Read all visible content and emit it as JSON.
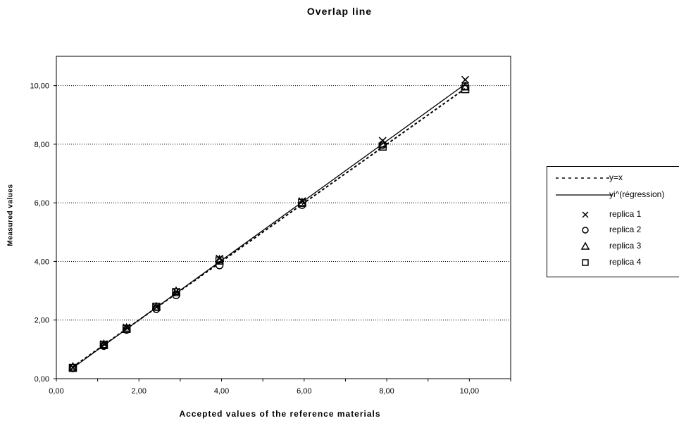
{
  "chart_data": {
    "type": "scatter",
    "title": "Overlap line",
    "xlabel": "Accepted values of the reference materials",
    "ylabel": "Measured values",
    "xlim": [
      0,
      11
    ],
    "ylim": [
      0,
      11
    ],
    "x_ticks": [
      "0,00",
      "2,00",
      "4,00",
      "6,00",
      "8,00",
      "10,00"
    ],
    "y_ticks": [
      "0,00",
      "2,00",
      "4,00",
      "6,00",
      "8,00",
      "10,00"
    ],
    "grid": "horizontal dotted",
    "legend_position": "right",
    "lines": [
      {
        "name": "y=x",
        "style": "dashed",
        "points": [
          [
            0.4,
            0.4
          ],
          [
            9.9,
            9.9
          ]
        ]
      },
      {
        "name": "yi^(régression)",
        "style": "solid",
        "points": [
          [
            0.4,
            0.37
          ],
          [
            9.9,
            10.05
          ]
        ]
      }
    ],
    "series": [
      {
        "name": "replica 1",
        "marker": "x",
        "x": [
          0.4,
          1.15,
          1.7,
          2.42,
          2.9,
          3.95,
          5.95,
          7.9,
          9.9
        ],
        "y": [
          0.38,
          1.18,
          1.75,
          2.45,
          2.97,
          4.1,
          6.06,
          8.12,
          10.2
        ]
      },
      {
        "name": "replica 2",
        "marker": "circle",
        "x": [
          0.4,
          1.15,
          1.7,
          2.42,
          2.9,
          3.95,
          5.95,
          7.9,
          9.9
        ],
        "y": [
          0.36,
          1.12,
          1.67,
          2.38,
          2.85,
          3.87,
          5.93,
          7.98,
          9.98
        ]
      },
      {
        "name": "replica 3",
        "marker": "triangle",
        "x": [
          0.4,
          1.15,
          1.7,
          2.42,
          2.9,
          3.95,
          5.95,
          7.9,
          9.9
        ],
        "y": [
          0.39,
          1.16,
          1.72,
          2.44,
          2.97,
          4.05,
          6.0,
          8.0,
          9.95
        ]
      },
      {
        "name": "replica 4",
        "marker": "square",
        "x": [
          0.4,
          1.15,
          1.7,
          2.42,
          2.9,
          3.95,
          5.95,
          7.9,
          9.9
        ],
        "y": [
          0.37,
          1.15,
          1.7,
          2.45,
          2.95,
          4.03,
          6.0,
          7.92,
          9.88
        ]
      }
    ]
  }
}
